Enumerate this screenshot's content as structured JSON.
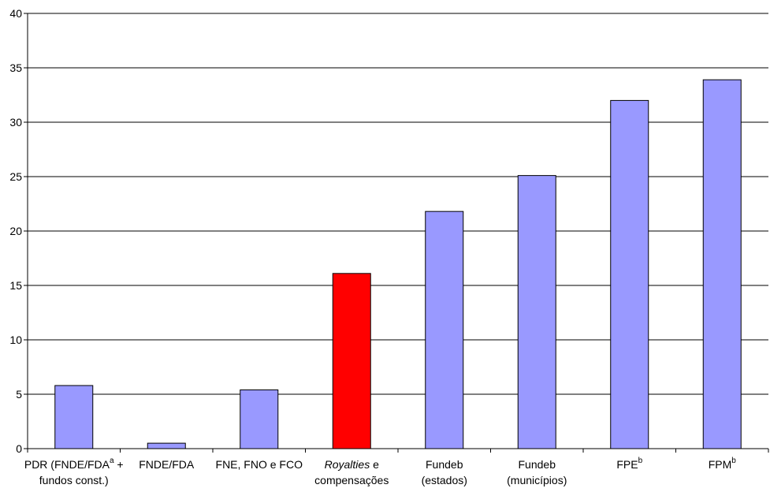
{
  "chart_data": {
    "type": "bar",
    "title": "",
    "xlabel": "",
    "ylabel": "",
    "ylim": [
      0,
      40
    ],
    "yticks": [
      0,
      5,
      10,
      15,
      20,
      25,
      30,
      35,
      40
    ],
    "grid": true,
    "legend": "none",
    "categories": [
      "PDR (FNDE/FDA + fundos const.)",
      "FNDE/FDA",
      "FNE, FNO e FCO",
      "Royalties e compensações",
      "Fundeb (estados)",
      "Fundeb (municípios)",
      "FPE",
      "FPM"
    ],
    "labels": [
      {
        "lines": [
          [
            {
              "t": "PDR (FNDE/FDA"
            },
            {
              "t": "a",
              "sup": true
            },
            {
              "t": " +"
            }
          ],
          [
            {
              "t": "fundos const.)"
            }
          ]
        ]
      },
      {
        "lines": [
          [
            {
              "t": "FNDE/FDA"
            }
          ]
        ]
      },
      {
        "lines": [
          [
            {
              "t": "FNE, FNO e FCO"
            }
          ]
        ]
      },
      {
        "lines": [
          [
            {
              "t": "Royalties",
              "italic": true
            },
            {
              "t": " e"
            }
          ],
          [
            {
              "t": "compensações"
            }
          ]
        ]
      },
      {
        "lines": [
          [
            {
              "t": "Fundeb"
            }
          ],
          [
            {
              "t": "(estados)"
            }
          ]
        ]
      },
      {
        "lines": [
          [
            {
              "t": "Fundeb"
            }
          ],
          [
            {
              "t": "(municípios)"
            }
          ]
        ]
      },
      {
        "lines": [
          [
            {
              "t": "FPE"
            },
            {
              "t": "b",
              "sup": true
            }
          ]
        ]
      },
      {
        "lines": [
          [
            {
              "t": "FPM"
            },
            {
              "t": "b",
              "sup": true
            }
          ]
        ]
      }
    ],
    "values": [
      5.8,
      0.5,
      5.4,
      16.1,
      21.8,
      25.1,
      32.0,
      33.9
    ],
    "colors": [
      "#9999ff",
      "#9999ff",
      "#9999ff",
      "#ff0000",
      "#9999ff",
      "#9999ff",
      "#9999ff",
      "#9999ff"
    ]
  }
}
